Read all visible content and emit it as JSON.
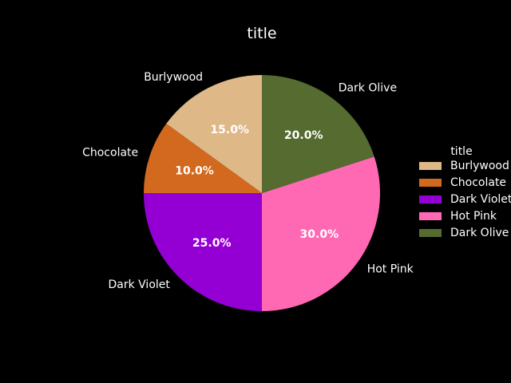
{
  "chart_data": {
    "type": "pie",
    "title": "title",
    "categories": [
      "Burlywood",
      "Chocolate",
      "Dark Violet",
      "Hot Pink",
      "Dark Olive"
    ],
    "values": [
      15.0,
      10.0,
      25.0,
      30.0,
      20.0
    ],
    "percent_labels": [
      "15.0%",
      "10.0%",
      "25.0%",
      "30.0%",
      "20.0%"
    ],
    "colors": [
      "#deb887",
      "#d2691e",
      "#9400d3",
      "#ff69b4",
      "#556b2f"
    ],
    "start_angle_deg": 90,
    "direction": "counterclockwise",
    "legend": {
      "title": "title",
      "position": "right"
    },
    "background": "#000000",
    "text_color": "#ffffff"
  }
}
